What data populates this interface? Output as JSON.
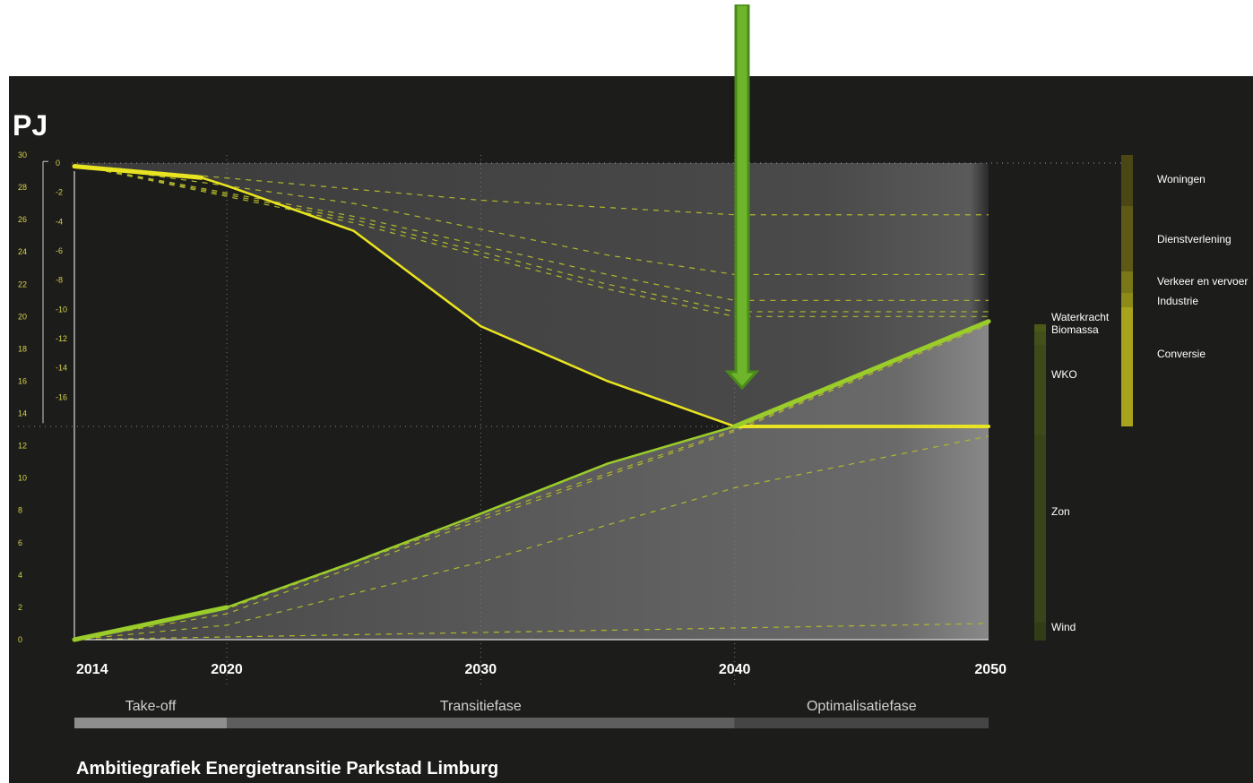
{
  "chart_data": {
    "type": "line",
    "title": "Ambitiegrafiek Energietransitie Parkstad Limburg",
    "ylabel": "PJ",
    "x": [
      2014,
      2020,
      2025,
      2030,
      2035,
      2040,
      2050
    ],
    "x_ticks": [
      "2014",
      "2020",
      "2030",
      "2040",
      "2050"
    ],
    "left_axis_ticks": [
      "30",
      "28",
      "26",
      "24",
      "22",
      "20",
      "18",
      "16",
      "14",
      "12",
      "10",
      "8",
      "6",
      "4",
      "2",
      "0"
    ],
    "savings_axis_ticks": [
      "0",
      "-2",
      "-4",
      "-6",
      "-8",
      "-10",
      "-12",
      "-14",
      "-16"
    ],
    "ylim": [
      0,
      30
    ],
    "series": [
      {
        "name": "",
        "color": "#e8e421",
        "x": [
          2014,
          2019,
          2020,
          2025,
          2030,
          2035,
          2040,
          2050
        ],
        "values": [
          29.3,
          28.6,
          28.1,
          25.3,
          19.4,
          16.0,
          13.2,
          13.2
        ]
      },
      {
        "name": "",
        "color": "#9acd2a",
        "x": [
          2014,
          2020,
          2025,
          2030,
          2035,
          2040,
          2050
        ],
        "values": [
          0,
          2.0,
          4.8,
          7.8,
          10.9,
          13.2,
          19.7
        ]
      }
    ],
    "savings_categories": [
      "Woningen",
      "Dienstverlening",
      "Verkeer en vervoer",
      "Industrie",
      "Conversie"
    ],
    "savings_bar_colors": [
      "#4a4715",
      "#5e5a16",
      "#7a7716",
      "#8e8a18",
      "#a8a21c"
    ],
    "renewables_categories": [
      "Waterkracht",
      "Biomassa",
      "WKO",
      "Zon",
      "Wind"
    ],
    "renewables_bar_colors": [
      "#4a5818",
      "#43501a",
      "#3d4a1a",
      "#384419",
      "#323c16"
    ],
    "phases": [
      "Take-off",
      "Transitiefase",
      "Optimalisatiefase"
    ]
  },
  "ui": {
    "arrow_color": "#6fb52c"
  }
}
